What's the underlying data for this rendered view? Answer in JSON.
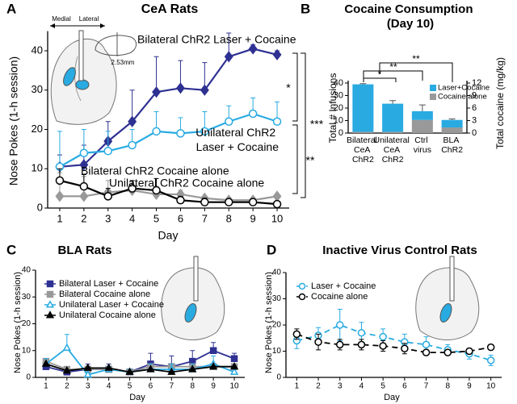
{
  "chart_data": [
    {
      "type": "line",
      "panel": "A",
      "title": "CeA Rats",
      "xlabel": "Day",
      "ylabel": "Nose Pokes (1-h session)",
      "x": [
        1,
        2,
        3,
        4,
        5,
        6,
        7,
        8,
        9,
        10
      ],
      "xlim": [
        0.5,
        10.5
      ],
      "xticks": [
        1,
        2,
        3,
        4,
        5,
        6,
        7,
        8,
        9,
        10
      ],
      "ylim": [
        0,
        45
      ],
      "yticks": [
        0,
        10,
        20,
        30,
        40
      ],
      "series": [
        {
          "name": "Bilateral ChR2 Laser + Cocaine",
          "color": "#2e3192",
          "marker": "diamond",
          "filled": true,
          "values": [
            10.5,
            11,
            17,
            22,
            29.5,
            30.5,
            30,
            38.5,
            40.5,
            39
          ],
          "errors": [
            3,
            5,
            5,
            8,
            9,
            7,
            7,
            6,
            1,
            1
          ]
        },
        {
          "name": "Unilateral ChR2 Laser + Cocaine",
          "color": "#29abe2",
          "marker": "circle",
          "filled": false,
          "values": [
            10.5,
            14,
            14.5,
            16,
            19.5,
            19,
            19.5,
            22,
            24,
            22
          ],
          "errors": [
            9,
            6,
            5,
            4,
            5,
            4,
            5,
            4,
            4,
            5
          ]
        },
        {
          "name": "Bilateral ChR2 Cocaine alone",
          "color": "#999999",
          "marker": "diamond",
          "filled": true,
          "values": [
            3,
            3,
            4,
            4.5,
            3.5,
            3.5,
            2.5,
            2,
            2,
            3
          ],
          "errors": [
            6,
            5,
            3,
            1,
            2,
            1,
            0.5,
            0.5,
            0.5,
            0.5
          ]
        },
        {
          "name": "Unilateral ChR2 Cocaine alone",
          "color": "#000000",
          "marker": "circle",
          "filled": false,
          "values": [
            7,
            5.5,
            3,
            5,
            4.5,
            2,
            1.5,
            1.5,
            1.5,
            1
          ],
          "errors": [
            3,
            3,
            2,
            2,
            3,
            1,
            1,
            0.5,
            0.5,
            0.5
          ]
        }
      ],
      "annotations": [
        "*",
        "***",
        "**",
        "Medial",
        "Lateral",
        "2.53mm"
      ]
    },
    {
      "type": "stacked_bar",
      "panel": "B",
      "title": "Cocaine Consumption (Day 10)",
      "ylabel": "Total # Infusions",
      "y2label": "Total cocaine (mg/kg)",
      "categories": [
        "Bilateral CeA ChR2",
        "Unilateral CeA ChR2",
        "Ctrl virus",
        "BLA ChR2"
      ],
      "ylim": [
        0,
        40
      ],
      "yticks": [
        0,
        10,
        20,
        30,
        40
      ],
      "y2lim": [
        0,
        12
      ],
      "y2ticks": [
        0,
        3,
        6,
        9,
        12
      ],
      "series": [
        {
          "name": "Cocaine alone",
          "color": "#999999",
          "values": [
            1,
            1,
            10.5,
            4.5
          ]
        },
        {
          "name": "Laser+Cocaine",
          "color": "#29abe2",
          "values": [
            38,
            22.5,
            7,
            6
          ],
          "errors": [
            0.5,
            2.5,
            5,
            0.8
          ]
        }
      ],
      "annotations": [
        "*",
        "**",
        "**"
      ]
    },
    {
      "type": "line",
      "panel": "C",
      "title": "BLA Rats",
      "xlabel": "Day",
      "ylabel": "Nose Pokes (1-h session)",
      "x": [
        1,
        2,
        3,
        4,
        5,
        6,
        7,
        8,
        9,
        10
      ],
      "xlim": [
        0.5,
        10.5
      ],
      "xticks": [
        1,
        2,
        3,
        4,
        5,
        6,
        7,
        8,
        9,
        10
      ],
      "ylim": [
        0,
        40
      ],
      "yticks": [
        0,
        10,
        20,
        30,
        40
      ],
      "series": [
        {
          "name": "Bilateral Laser + Cocaine",
          "color": "#2e3192",
          "marker": "square",
          "filled": true,
          "values": [
            4,
            2,
            3,
            3,
            2,
            5,
            4,
            6,
            10,
            7
          ],
          "errors": [
            2,
            2,
            2,
            2,
            1,
            4,
            4,
            4,
            3,
            2
          ]
        },
        {
          "name": "Bilateral Cocaine alone",
          "color": "#999999",
          "marker": "square",
          "filled": true,
          "values": [
            6,
            3,
            3,
            3,
            2,
            4,
            4,
            4,
            4,
            4
          ]
        },
        {
          "name": "Unilateral Laser + Cocaine",
          "color": "#29abe2",
          "marker": "triangle",
          "filled": false,
          "values": [
            5,
            11,
            1,
            3,
            2,
            3,
            3,
            3,
            5,
            2
          ],
          "errors": [
            2,
            5,
            2,
            1,
            1,
            2,
            2,
            2,
            3,
            2
          ]
        },
        {
          "name": "Unilateral Cocaine alone",
          "color": "#000000",
          "marker": "triangle",
          "filled": true,
          "values": [
            5,
            2.5,
            3.5,
            3.5,
            2,
            3,
            2,
            3,
            4,
            4
          ]
        }
      ]
    },
    {
      "type": "line",
      "panel": "D",
      "title": "Inactive Virus Control Rats",
      "xlabel": "Day",
      "ylabel": "Nose Pokes (1-h session)",
      "x": [
        1,
        2,
        3,
        4,
        5,
        6,
        7,
        8,
        9,
        10
      ],
      "xlim": [
        0.5,
        10.5
      ],
      "xticks": [
        1,
        2,
        3,
        4,
        5,
        6,
        7,
        8,
        9,
        10
      ],
      "ylim": [
        0,
        40
      ],
      "yticks": [
        0,
        10,
        20,
        30,
        40
      ],
      "series": [
        {
          "name": "Laser + Cocaine",
          "color": "#29abe2",
          "marker": "circle",
          "filled": false,
          "dashed": true,
          "values": [
            14,
            16,
            20,
            17,
            15.5,
            13.5,
            12.5,
            10.5,
            9,
            6.5
          ],
          "errors": [
            3,
            3,
            6,
            4,
            3,
            3,
            3,
            2,
            2,
            2
          ]
        },
        {
          "name": "Cocaine alone",
          "color": "#000000",
          "marker": "circle",
          "filled": false,
          "dashed": true,
          "values": [
            16.5,
            13.5,
            12.5,
            12.5,
            12,
            11,
            9.5,
            9.5,
            10,
            11.5
          ],
          "errors": [
            2,
            3,
            2,
            2,
            2,
            2,
            1,
            1,
            1,
            1
          ]
        }
      ]
    }
  ]
}
